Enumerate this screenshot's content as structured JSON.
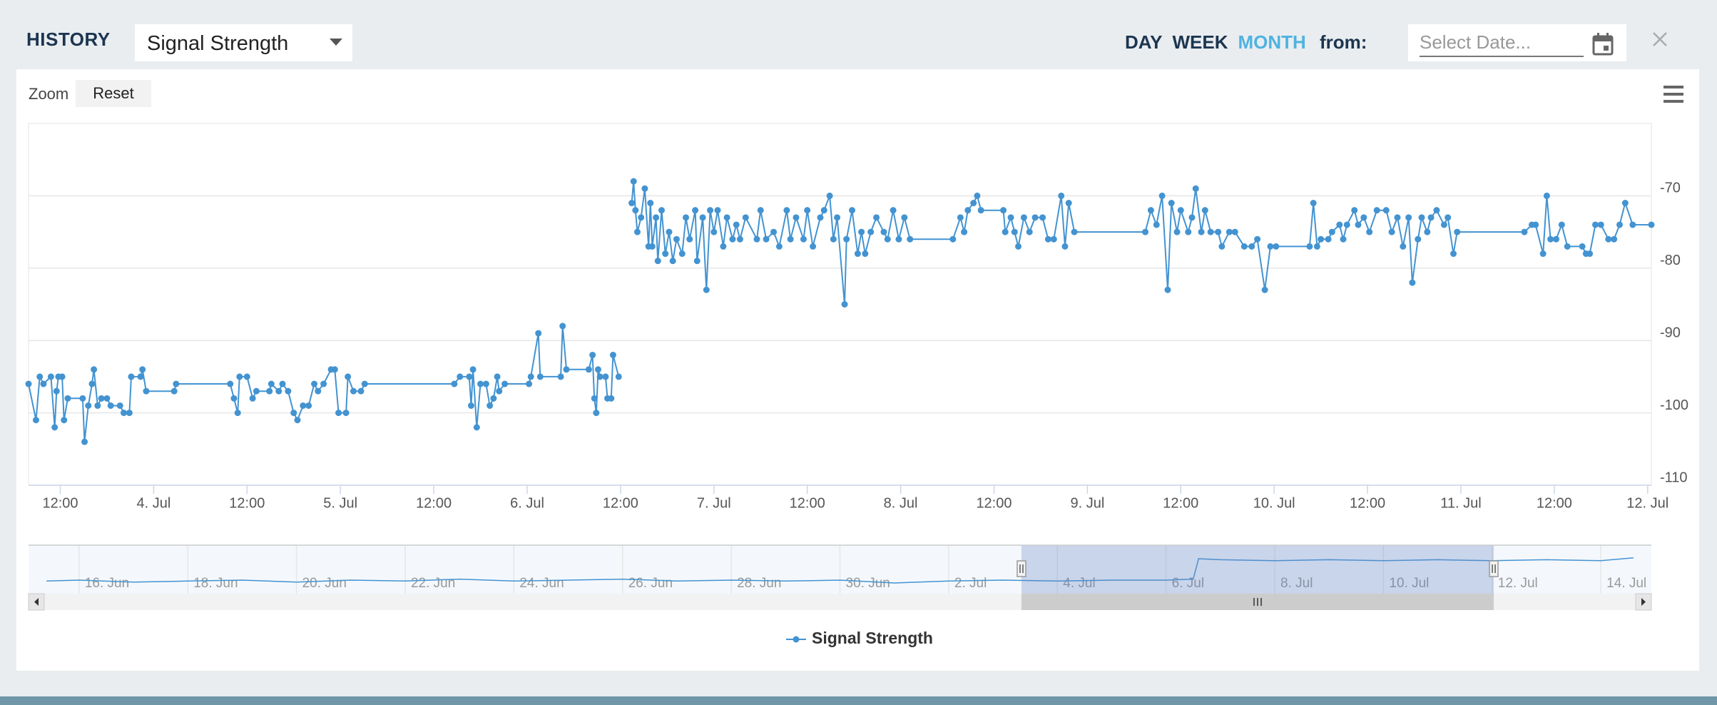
{
  "header": {
    "title": "HISTORY",
    "metric": "Signal Strength",
    "periods": [
      "DAY",
      "WEEK",
      "MONTH"
    ],
    "active_period": "MONTH",
    "from_label": "from:",
    "date_placeholder": "Select Date..."
  },
  "toolbar": {
    "zoom_label": "Zoom",
    "reset": "Reset"
  },
  "chart_data": {
    "type": "line",
    "x": [
      3.33,
      3.37,
      3.39,
      3.41,
      3.45,
      3.47,
      3.48,
      3.49,
      3.51,
      3.52,
      3.54,
      3.62,
      3.63,
      3.65,
      3.67,
      3.68,
      3.7,
      3.72,
      3.75,
      3.77,
      3.82,
      3.84,
      3.87,
      3.88,
      3.93,
      3.94,
      3.96,
      4.11,
      4.12,
      4.41,
      4.43,
      4.45,
      4.46,
      4.5,
      4.53,
      4.55,
      4.62,
      4.63,
      4.67,
      4.69,
      4.72,
      4.75,
      4.77,
      4.8,
      4.83,
      4.86,
      4.88,
      4.91,
      4.95,
      4.97,
      4.99,
      5.03,
      5.04,
      5.07,
      5.11,
      5.13,
      5.61,
      5.64,
      5.69,
      5.7,
      5.71,
      5.73,
      5.75,
      5.78,
      5.8,
      5.82,
      5.84,
      5.85,
      5.88,
      6.01,
      6.02,
      6.06,
      6.07,
      6.18,
      6.19,
      6.21,
      6.33,
      6.35,
      6.36,
      6.37,
      6.38,
      6.39,
      6.42,
      6.43,
      6.45,
      6.46,
      6.49,
      6.52,
      6.56,
      6.57,
      6.58,
      6.59,
      6.61,
      6.63,
      6.65,
      6.66,
      6.67,
      6.69,
      6.7,
      6.72,
      6.74,
      6.76,
      6.78,
      6.8,
      6.83,
      6.85,
      6.87,
      6.9,
      6.91,
      6.94,
      6.96,
      6.98,
      7.0,
      7.02,
      7.05,
      7.07,
      7.1,
      7.12,
      7.14,
      7.17,
      7.23,
      7.25,
      7.28,
      7.32,
      7.35,
      7.39,
      7.41,
      7.44,
      7.48,
      7.5,
      7.53,
      7.57,
      7.59,
      7.62,
      7.64,
      7.66,
      7.7,
      7.71,
      7.74,
      7.77,
      7.79,
      7.81,
      7.84,
      7.87,
      7.91,
      7.93,
      7.96,
      7.99,
      8.02,
      8.05,
      8.28,
      8.32,
      8.34,
      8.36,
      8.39,
      8.41,
      8.43,
      8.55,
      8.56,
      8.59,
      8.61,
      8.63,
      8.66,
      8.69,
      8.72,
      8.76,
      8.79,
      8.82,
      8.86,
      8.88,
      8.9,
      8.93,
      9.31,
      9.34,
      9.37,
      9.4,
      9.43,
      9.45,
      9.48,
      9.5,
      9.54,
      9.56,
      9.58,
      9.61,
      9.63,
      9.66,
      9.7,
      9.72,
      9.76,
      9.79,
      9.84,
      9.88,
      9.91,
      9.95,
      9.98,
      10.01,
      10.19,
      10.21,
      10.23,
      10.25,
      10.29,
      10.31,
      10.35,
      10.37,
      10.39,
      10.43,
      10.45,
      10.48,
      10.51,
      10.55,
      10.6,
      10.63,
      10.66,
      10.69,
      10.72,
      10.74,
      10.77,
      10.79,
      10.82,
      10.84,
      10.87,
      10.91,
      10.93,
      10.96,
      10.98,
      11.34,
      11.38,
      11.4,
      11.44,
      11.46,
      11.48,
      11.51,
      11.54,
      11.57,
      11.65,
      11.67,
      11.69,
      11.72,
      11.75,
      11.79,
      11.82,
      11.85,
      11.88,
      11.92,
      12.02
    ],
    "series": [
      {
        "name": "Signal Strength",
        "color": "#4393d1",
        "values": [
          -96,
          -101,
          -95,
          -96,
          -95,
          -102,
          -97,
          -95,
          -95,
          -101,
          -98,
          -98,
          -104,
          -99,
          -96,
          -94,
          -99,
          -98,
          -98,
          -99,
          -99,
          -100,
          -100,
          -95,
          -95,
          -94,
          -97,
          -97,
          -96,
          -96,
          -98,
          -100,
          -95,
          -95,
          -98,
          -97,
          -97,
          -96,
          -97,
          -96,
          -97,
          -100,
          -101,
          -99,
          -99,
          -96,
          -97,
          -96,
          -94,
          -94,
          -100,
          -100,
          -95,
          -97,
          -97,
          -96,
          -96,
          -95,
          -95,
          -99,
          -94,
          -102,
          -96,
          -96,
          -99,
          -98,
          -95,
          -97,
          -96,
          -96,
          -95,
          -89,
          -95,
          -95,
          -88,
          -94,
          -94,
          -92,
          -98,
          -100,
          -94,
          -95,
          -95,
          -98,
          -98,
          -92,
          -95,
          null,
          -71,
          -68,
          -72,
          -75,
          -73,
          -69,
          -77,
          -71,
          -77,
          -73,
          -79,
          -72,
          -78,
          -75,
          -79,
          -76,
          -78,
          -73,
          -76,
          -72,
          -79,
          -73,
          -83,
          -72,
          -75,
          -72,
          -77,
          -73,
          -76,
          -74,
          -76,
          -73,
          -76,
          -72,
          -76,
          -75,
          -77,
          -72,
          -76,
          -73,
          -76,
          -72,
          -77,
          -73,
          -72,
          -70,
          -76,
          -73,
          -85,
          -76,
          -72,
          -78,
          -75,
          -78,
          -75,
          -73,
          -75,
          -76,
          -72,
          -76,
          -73,
          -76,
          -76,
          -73,
          -75,
          -72,
          -71,
          -70,
          -72,
          -72,
          -75,
          -73,
          -75,
          -77,
          -73,
          -75,
          -73,
          -73,
          -76,
          -76,
          -70,
          -77,
          -71,
          -75,
          -75,
          -72,
          -74,
          -70,
          -83,
          -71,
          -75,
          -72,
          -75,
          -73,
          -69,
          -75,
          -72,
          -75,
          -75,
          -77,
          -75,
          -75,
          -77,
          -77,
          -76,
          -83,
          -77,
          -77,
          -77,
          -71,
          -77,
          -76,
          -76,
          -75,
          -74,
          -76,
          -74,
          -72,
          -74,
          -73,
          -75,
          -72,
          -72,
          -75,
          -73,
          -77,
          -73,
          -82,
          -76,
          -73,
          -75,
          -73,
          -72,
          -74,
          -73,
          -78,
          -75,
          -75,
          -74,
          -74,
          -78,
          -70,
          -76,
          -76,
          -74,
          -77,
          -77,
          -78,
          -78,
          -74,
          -74,
          -76,
          -76,
          -74,
          -71,
          -74,
          -74
        ]
      }
    ],
    "xlim": [
      3.33,
      12.02
    ],
    "xticks": [
      {
        "value": 3.5,
        "label": "12:00"
      },
      {
        "value": 4,
        "label": "4. Jul"
      },
      {
        "value": 4.5,
        "label": "12:00"
      },
      {
        "value": 5,
        "label": "5. Jul"
      },
      {
        "value": 5.5,
        "label": "12:00"
      },
      {
        "value": 6,
        "label": "6. Jul"
      },
      {
        "value": 6.5,
        "label": "12:00"
      },
      {
        "value": 7,
        "label": "7. Jul"
      },
      {
        "value": 7.5,
        "label": "12:00"
      },
      {
        "value": 8,
        "label": "8. Jul"
      },
      {
        "value": 8.5,
        "label": "12:00"
      },
      {
        "value": 9,
        "label": "9. Jul"
      },
      {
        "value": 9.5,
        "label": "12:00"
      },
      {
        "value": 10,
        "label": "10. Jul"
      },
      {
        "value": 10.5,
        "label": "12:00"
      },
      {
        "value": 11,
        "label": "11. Jul"
      },
      {
        "value": 11.5,
        "label": "12:00"
      },
      {
        "value": 12,
        "label": "12. Jul"
      }
    ],
    "ylim": [
      -110,
      -60
    ],
    "yticks": [
      -110,
      -100,
      -90,
      -80,
      -70
    ],
    "grid": true,
    "legend": "bottom",
    "navigator": {
      "x": [
        -14.6,
        -14,
        -13,
        -12,
        -11,
        -10,
        -9,
        -8,
        -7,
        -6,
        -5,
        -4,
        -3,
        -2,
        -1,
        0,
        1,
        2,
        3,
        4,
        5,
        6,
        6.5,
        6.6,
        7,
        8,
        9,
        10,
        11,
        12,
        13,
        14,
        14.6
      ],
      "values": [
        -97,
        -96,
        -98,
        -97,
        -96,
        -98,
        -96,
        -97,
        -95,
        -97,
        -96,
        -95,
        -97,
        -96,
        -97,
        -96,
        -99,
        -97,
        -96,
        -97,
        -96,
        -96,
        -95,
        -74,
        -75,
        -76,
        -75,
        -76,
        -75,
        -76,
        -75,
        -76,
        -73
      ],
      "xlim": [
        -14.93,
        14.93
      ],
      "ylim": [
        -110,
        -60
      ],
      "selection": [
        3.34,
        12.03
      ],
      "xticks": [
        {
          "value": -14,
          "label": "16. Jun"
        },
        {
          "value": -12,
          "label": "18. Jun"
        },
        {
          "value": -10,
          "label": "20. Jun"
        },
        {
          "value": -8,
          "label": "22. Jun"
        },
        {
          "value": -6,
          "label": "24. Jun"
        },
        {
          "value": -4,
          "label": "26. Jun"
        },
        {
          "value": -2,
          "label": "28. Jun"
        },
        {
          "value": 0,
          "label": "30. Jun"
        },
        {
          "value": 2,
          "label": "2. Jul"
        },
        {
          "value": 4,
          "label": "4. Jul"
        },
        {
          "value": 6,
          "label": "6. Jul"
        },
        {
          "value": 8,
          "label": "8. Jul"
        },
        {
          "value": 10,
          "label": "10. Jul"
        },
        {
          "value": 12,
          "label": "12. Jul"
        },
        {
          "value": 14,
          "label": "14. Jul"
        }
      ]
    }
  }
}
